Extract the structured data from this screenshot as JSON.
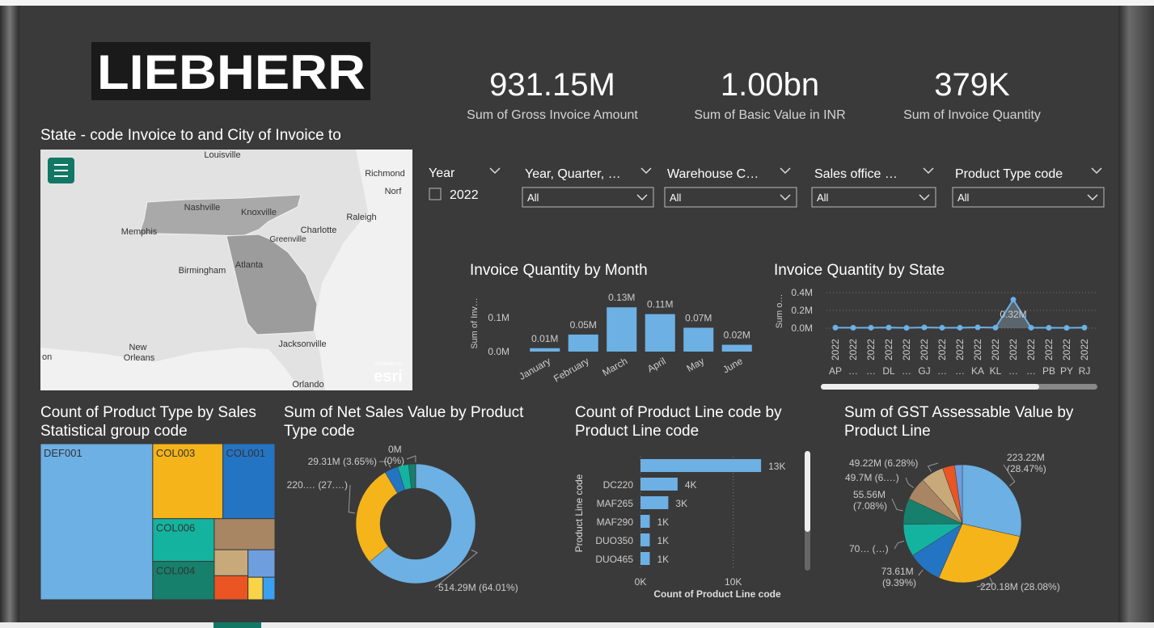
{
  "logo": "LIEBHERR",
  "kpis": [
    {
      "value": "931.15M",
      "label": "Sum of Gross Invoice Amount"
    },
    {
      "value": "1.00bn",
      "label": "Sum of Basic Value in INR"
    },
    {
      "value": "379K",
      "label": "Sum of Invoice Quantity"
    }
  ],
  "map": {
    "title": "State - code Invoice to and City of Invoice to",
    "places": [
      "Louisville",
      "Richmond",
      "Norf",
      "Nashville",
      "Knoxville",
      "Raleigh",
      "Memphis",
      "Charlotte",
      "Greenville",
      "Birmingham",
      "Atlanta",
      "Jacksonville",
      "New Orleans",
      "on",
      "Orlando"
    ],
    "credit_small": "POWERED BY",
    "credit": "esri"
  },
  "slicers": [
    {
      "title": "Year",
      "option": "2022"
    },
    {
      "title": "Year, Quarter, …",
      "value": "All"
    },
    {
      "title": "Warehouse C…",
      "value": "All"
    },
    {
      "title": "Sales office …",
      "value": "All"
    },
    {
      "title": "Product Type code",
      "value": "All"
    }
  ],
  "chart_data": [
    {
      "type": "bar",
      "title": "Invoice Quantity by Month",
      "y_label": "Sum of Inv…",
      "categories": [
        "January",
        "February",
        "March",
        "April",
        "May",
        "June"
      ],
      "values": [
        10000,
        50000,
        130000,
        110000,
        70000,
        20000
      ],
      "value_labels": [
        "0.01M",
        "0.05M",
        "0.13M",
        "0.11M",
        "0.07M",
        "0.02M"
      ],
      "color": "#6cb0e4",
      "ylim": [
        0,
        140000
      ],
      "yticks": [
        {
          "value": 0,
          "label": "0.0M"
        },
        {
          "value": 100000,
          "label": "0.1M"
        }
      ]
    },
    {
      "type": "line",
      "title": "Invoice Quantity by State",
      "y_label": "Sum o…",
      "categories": [
        "AP",
        "…",
        "…",
        "DL",
        "…",
        "GJ",
        "…",
        "…",
        "KA",
        "KL",
        "…",
        "…",
        "PB",
        "PY",
        "RJ"
      ],
      "category_years": [
        "2022",
        "2022",
        "2022",
        "2022",
        "2022",
        "2022",
        "2022",
        "2022",
        "2022",
        "2022",
        "2022",
        "2022",
        "2022",
        "2022",
        "2022"
      ],
      "values": [
        6000,
        4000,
        5000,
        7000,
        3000,
        8000,
        4000,
        5000,
        9000,
        6000,
        320000,
        5000,
        4000,
        3000,
        6000
      ],
      "value_labels": [
        null,
        null,
        null,
        null,
        null,
        null,
        null,
        null,
        null,
        null,
        "0.32M",
        null,
        null,
        null,
        null
      ],
      "color": "#6cb0e4",
      "ylim": [
        0,
        400000
      ],
      "yticks": [
        {
          "value": 0,
          "label": "0.0M"
        },
        {
          "value": 200000,
          "label": "0.2M"
        },
        {
          "value": 400000,
          "label": "0.4M"
        }
      ],
      "grid": true
    },
    {
      "type": "treemap",
      "title": "Count of Product Type by Sales Statistical group code",
      "categories": [
        "DEF001",
        "COL003",
        "COL001",
        "COL006",
        "COL004",
        null,
        null,
        null,
        null,
        null,
        null
      ],
      "values": [
        260,
        78,
        58,
        39,
        35,
        28,
        13,
        12,
        11,
        5,
        4
      ],
      "colors": [
        "#6cb0e4",
        "#f5b41a",
        "#2474c4",
        "#14b3a0",
        "#16806c",
        "#a88664",
        "#c8aa7a",
        "#ea5523",
        "#6e9ede",
        "#f7d448",
        "#39a0f2"
      ]
    },
    {
      "type": "donut",
      "title": "Sum of Net Sales Value by Product Type code",
      "values": [
        514.29,
        220.5,
        29.31,
        24,
        15.05,
        0.3
      ],
      "value_labels": [
        "514.29M (64.01%)",
        "220.… (27.…)",
        "29.31M (3.65%)",
        null,
        null,
        "0M (0%)"
      ],
      "colors": [
        "#6cb0e4",
        "#f5b41a",
        "#2474c4",
        "#14b3a0",
        "#16806c",
        "#8a8a8a"
      ]
    },
    {
      "type": "hbar",
      "title": "Count of Product Line code by Product Line code",
      "x_label": "Count of Product Line code",
      "y_label": "Product Line code",
      "categories": [
        null,
        "DC220",
        "MAF265",
        "MAF290",
        "DUO350",
        "DUO465"
      ],
      "values": [
        13000,
        4000,
        3000,
        1000,
        1000,
        1000
      ],
      "value_labels": [
        "13K",
        "4K",
        "3K",
        "1K",
        "1K",
        "1K"
      ],
      "color": "#6cb0e4",
      "xlim": [
        0,
        17000
      ],
      "xticks": [
        {
          "value": 0,
          "label": "0K"
        },
        {
          "value": 10000,
          "label": "10K"
        }
      ]
    },
    {
      "type": "pie",
      "title": "Sum of GST Assessable Value by Product Line",
      "values": [
        223.22,
        220.18,
        73.61,
        70,
        55.56,
        49.7,
        49.22,
        26,
        16.56
      ],
      "value_labels": [
        "223.22M (28.47%)",
        "220.18M (28.08%)",
        "73.61M (9.39%)",
        "70… (…)",
        "55.56M (7.08%)",
        "49.7M (6.…)",
        "49.22M (6.28%)",
        null,
        null
      ],
      "colors": [
        "#6cb0e4",
        "#f5b41a",
        "#2474c4",
        "#14b3a0",
        "#16806c",
        "#a88664",
        "#c8aa7a",
        "#ea5523",
        "#6e9ede"
      ]
    }
  ]
}
